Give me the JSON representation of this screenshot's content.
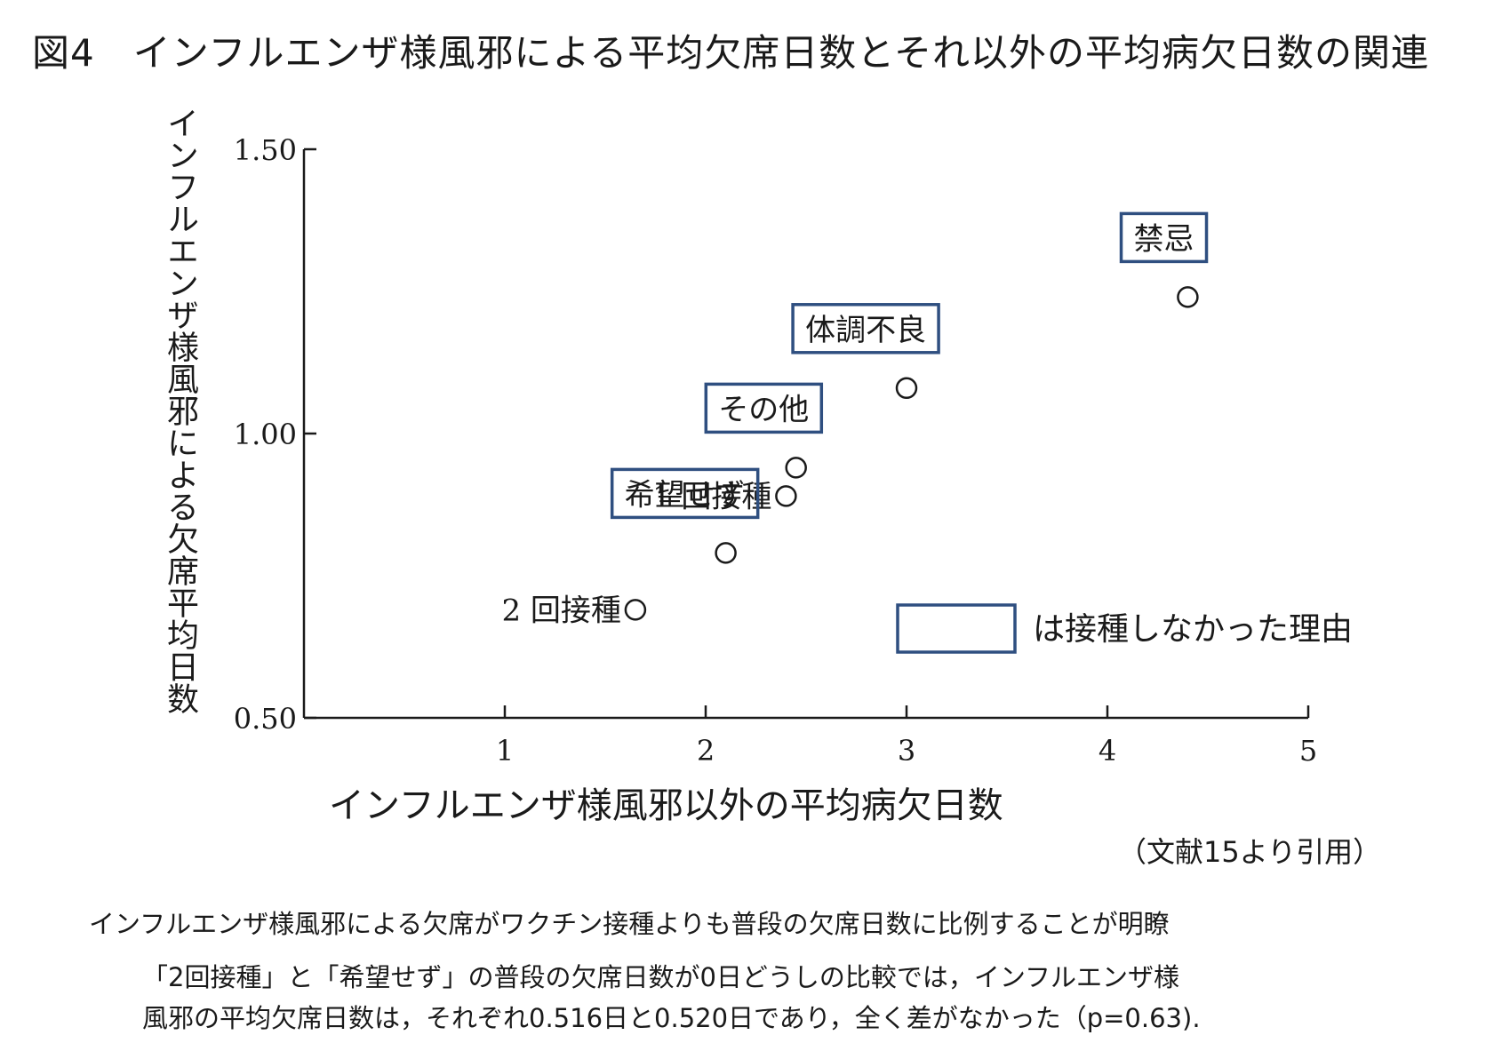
{
  "figure_title": "図4　インフルエンザ様風邪による平均欠席日数とそれ以外の平均病欠日数の関連",
  "citation": "（文献15より引用）",
  "caption_lines": [
    "インフルエンザ様風邪による欠席がワクチン接種よりも普段の欠席日数に比例することが明瞭",
    "「2回接種」と「希望せず」の普段の欠席日数が0日どうしの比較では，インフルエンザ様",
    "風邪の平均欠席日数は，それぞれ0.516日と0.520日であり，全く差がなかった（p=0.63)."
  ],
  "colors": {
    "box_border": "#2f4f80",
    "axis": "#1a1a1a",
    "marker": "#1a1a1a"
  },
  "chart_data": {
    "type": "scatter",
    "xlabel": "インフルエンザ様風邪以外の平均病欠日数",
    "ylabel": "インフルエンザ様風邪による欠席平均日数",
    "xlim": [
      0,
      5
    ],
    "ylim": [
      0.5,
      1.5
    ],
    "x_ticks": [
      1,
      2,
      3,
      4,
      5
    ],
    "x_tick_labels": [
      "1",
      "2",
      "3",
      "4",
      "5"
    ],
    "y_ticks": [
      0.5,
      1.0,
      1.5
    ],
    "y_tick_labels": [
      "0.50",
      "1.00",
      "1.50"
    ],
    "grid": false,
    "points": [
      {
        "label": "禁忌",
        "x": 4.4,
        "y": 1.24,
        "boxed": true
      },
      {
        "label": "体調不良",
        "x": 3.0,
        "y": 1.08,
        "boxed": true
      },
      {
        "label": "その他",
        "x": 2.45,
        "y": 0.94,
        "boxed": true
      },
      {
        "label": "1 回接種",
        "x": 2.4,
        "y": 0.89,
        "boxed": false
      },
      {
        "label": "希望せず",
        "x": 2.1,
        "y": 0.79,
        "boxed": true
      },
      {
        "label": "2 回接種",
        "x": 1.65,
        "y": 0.69,
        "boxed": false
      }
    ],
    "legend": {
      "text": "は接種しなかった理由",
      "position": "bottom-right"
    }
  }
}
